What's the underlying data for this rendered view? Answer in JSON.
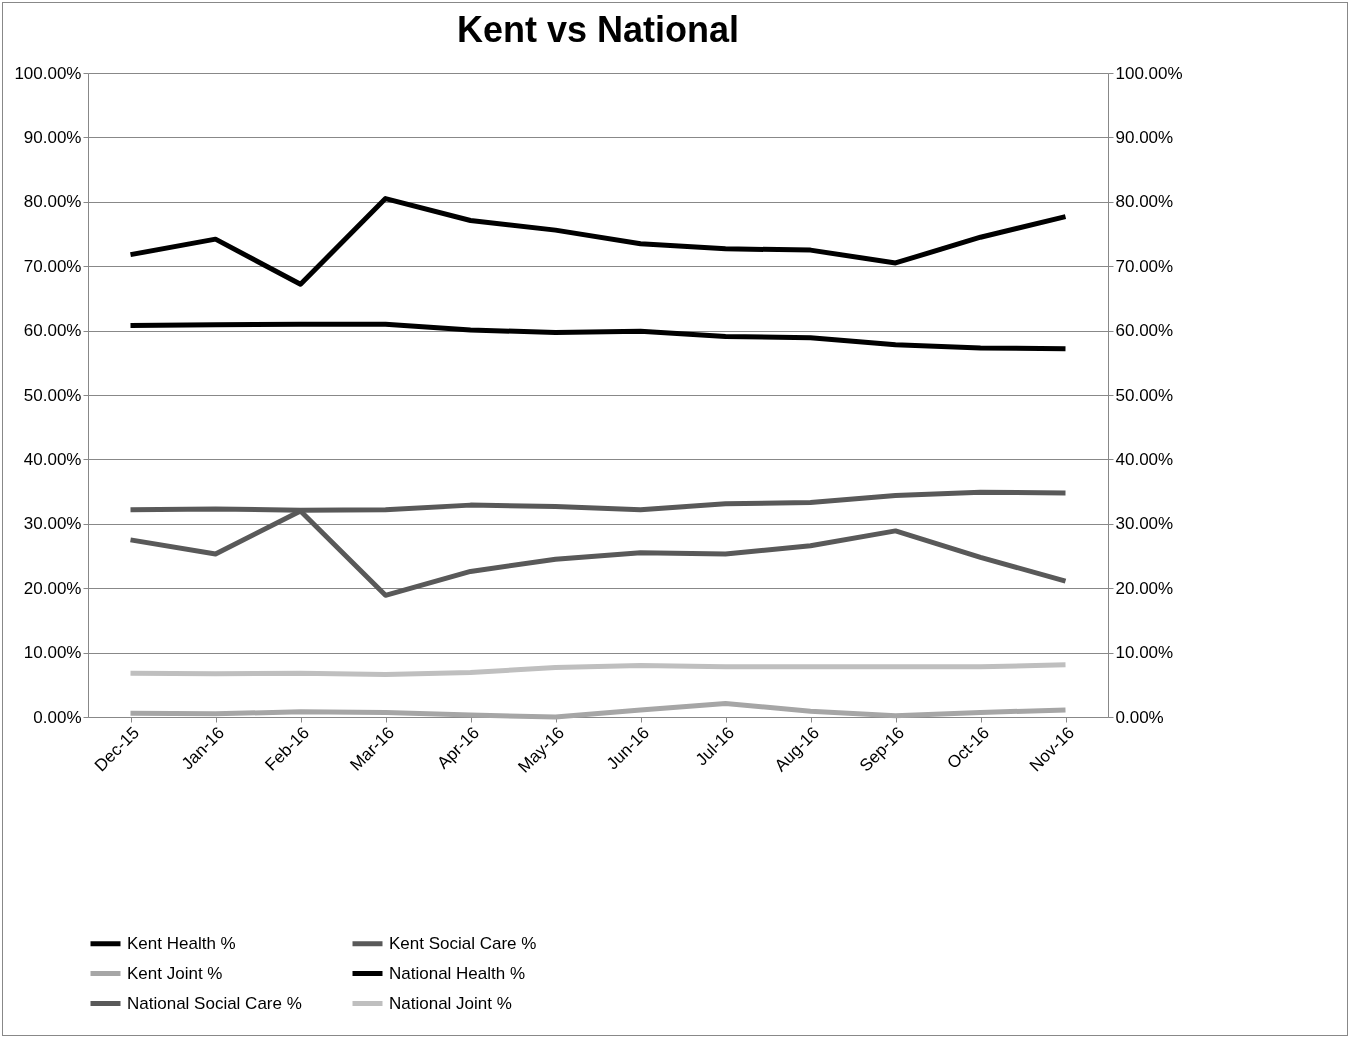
{
  "chart_data": {
    "type": "line",
    "title": "Kent vs National",
    "categories": [
      "Dec-15",
      "Jan-16",
      "Feb-16",
      "Mar-16",
      "Apr-16",
      "May-16",
      "Jun-16",
      "Jul-16",
      "Aug-16",
      "Sep-16",
      "Oct-16",
      "Nov-16"
    ],
    "series": [
      {
        "name": "Kent Health %",
        "color": "#000000",
        "values": [
          71.8,
          74.2,
          67.2,
          80.5,
          77.1,
          75.6,
          73.5,
          72.7,
          72.5,
          70.5,
          74.5,
          77.7
        ]
      },
      {
        "name": "Kent Social Care %",
        "color": "#595959",
        "values": [
          27.5,
          25.3,
          32.0,
          18.9,
          22.6,
          24.5,
          25.5,
          25.3,
          26.6,
          28.9,
          24.8,
          21.1
        ]
      },
      {
        "name": "Kent Joint %",
        "color": "#a6a6a6",
        "values": [
          0.6,
          0.5,
          0.8,
          0.7,
          0.3,
          0.0,
          1.1,
          2.1,
          0.9,
          0.2,
          0.7,
          1.1
        ]
      },
      {
        "name": "National Health %",
        "color": "#000000",
        "values": [
          60.8,
          60.9,
          61.0,
          61.0,
          60.1,
          59.7,
          59.9,
          59.1,
          58.9,
          57.8,
          57.3,
          57.2
        ]
      },
      {
        "name": "National Social Care %",
        "color": "#595959",
        "values": [
          32.2,
          32.3,
          32.1,
          32.2,
          32.9,
          32.7,
          32.2,
          33.1,
          33.3,
          34.4,
          34.9,
          34.8
        ]
      },
      {
        "name": "National Joint %",
        "color": "#bfbfbf",
        "values": [
          6.8,
          6.7,
          6.8,
          6.6,
          6.9,
          7.7,
          8.0,
          7.8,
          7.8,
          7.8,
          7.8,
          8.1
        ]
      }
    ],
    "ylim": [
      0,
      100
    ],
    "yticks": [
      {
        "value": 0,
        "label": "0.00%"
      },
      {
        "value": 10,
        "label": "10.00%"
      },
      {
        "value": 20,
        "label": "20.00%"
      },
      {
        "value": 30,
        "label": "30.00%"
      },
      {
        "value": 40,
        "label": "40.00%"
      },
      {
        "value": 50,
        "label": "50.00%"
      },
      {
        "value": 60,
        "label": "60.00%"
      },
      {
        "value": 70,
        "label": "70.00%"
      },
      {
        "value": 80,
        "label": "80.00%"
      },
      {
        "value": 90,
        "label": "90.00%"
      },
      {
        "value": 100,
        "label": "100.00%"
      }
    ],
    "y2lim": [
      0,
      100
    ],
    "y2ticks": [
      {
        "value": 0,
        "label": "0.00%"
      },
      {
        "value": 10,
        "label": "10.00%"
      },
      {
        "value": 20,
        "label": "20.00%"
      },
      {
        "value": 30,
        "label": "30.00%"
      },
      {
        "value": 40,
        "label": "40.00%"
      },
      {
        "value": 50,
        "label": "50.00%"
      },
      {
        "value": 60,
        "label": "60.00%"
      },
      {
        "value": 70,
        "label": "70.00%"
      },
      {
        "value": 80,
        "label": "80.00%"
      },
      {
        "value": 90,
        "label": "90.00%"
      },
      {
        "value": 100,
        "label": "100.00%"
      }
    ],
    "grid": "y",
    "legend": "bottom",
    "line_style": "solid"
  }
}
